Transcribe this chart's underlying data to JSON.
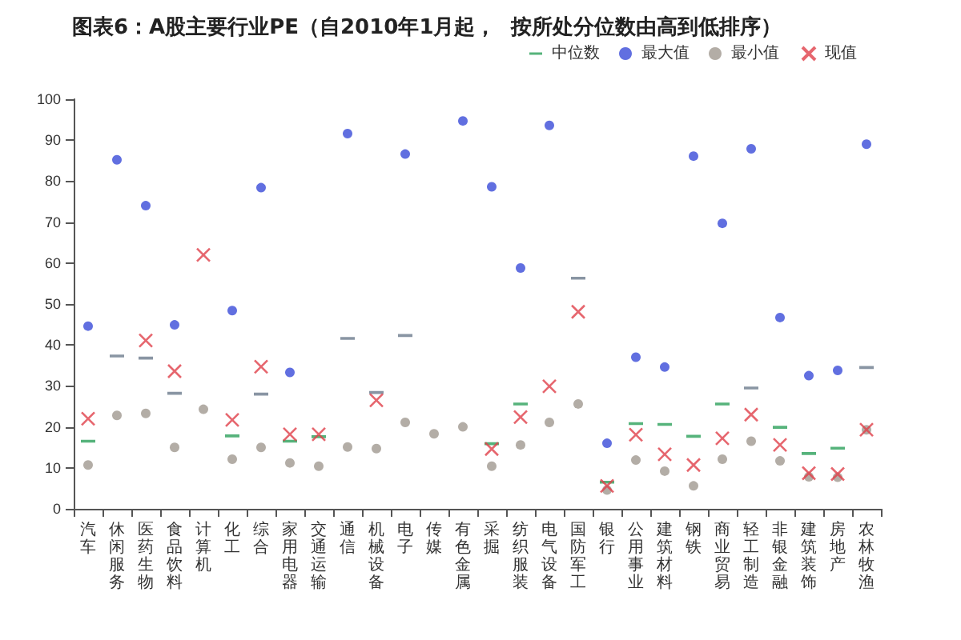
{
  "chart_data": {
    "type": "scatter",
    "title": "图表6：A股主要行业PE（自2010年1月起，  按所处分位数由高到低排序）",
    "categories": [
      "汽车",
      "休闲服务",
      "医药生物",
      "食品饮料",
      "计算机",
      "化工",
      "综合",
      "家用电器",
      "交通运输",
      "通信",
      "机械设备",
      "电子",
      "传媒",
      "有色金属",
      "采掘",
      "纺织服装",
      "电气设备",
      "国防军工",
      "银行",
      "公用事业",
      "建筑材料",
      "钢铁",
      "商业贸易",
      "轻工制造",
      "非银金融",
      "建筑装饰",
      "房地产",
      "农林牧渔"
    ],
    "series": [
      {
        "name": "中位数",
        "color": "#2ca05a",
        "colors": [
          "#2ca05a",
          "#6b7b8c",
          "#6b7b8c",
          "#6b7b8c",
          "#6b7b8c",
          "#2ca05a",
          "#6b7b8c",
          "#2ca05a",
          "#2ca05a",
          "#6b7b8c",
          "#6b7b8c",
          "#6b7b8c",
          "#6b7b8c",
          "#6b7b8c",
          "#2ca05a",
          "#2ca05a",
          "#6b7b8c",
          "#6b7b8c",
          "#2ca05a",
          "#2ca05a",
          "#2ca05a",
          "#2ca05a",
          "#2ca05a",
          "#6b7b8c",
          "#2ca05a",
          "#2ca05a",
          "#2ca05a",
          "#6b7b8c"
        ],
        "values": [
          16.5,
          37.3,
          36.8,
          28.2,
          null,
          17.8,
          28,
          16.5,
          17.6,
          41.6,
          28.4,
          42.3,
          null,
          null,
          15.9,
          25.6,
          null,
          56.3,
          6.5,
          20.8,
          20.6,
          17.7,
          25.6,
          29.5,
          19.9,
          13.5,
          14.8,
          34.5
        ]
      },
      {
        "name": "最大值",
        "color": "#3a4bd8",
        "marker": "circle",
        "values": [
          44.6,
          85.2,
          74,
          44.9,
          null,
          48.4,
          78.4,
          33.3,
          null,
          91.6,
          null,
          86.6,
          null,
          94.7,
          78.6,
          58.8,
          93.6,
          null,
          16,
          37,
          34.6,
          86.1,
          69.7,
          87.9,
          46.7,
          32.5,
          33.8,
          89
        ]
      },
      {
        "name": "最小值",
        "color": "#a09890",
        "marker": "circle",
        "values": [
          10.7,
          22.8,
          23.3,
          15,
          24.3,
          12.1,
          15,
          11.2,
          10.4,
          15.1,
          14.7,
          21.1,
          18.3,
          20,
          10.4,
          15.6,
          21.1,
          25.6,
          4.6,
          11.9,
          9.2,
          5.6,
          12.1,
          16.5,
          11.7,
          7.8,
          7.7,
          19.3
        ]
      },
      {
        "name": "现值",
        "color": "#e0404a",
        "marker": "cross",
        "values": [
          22,
          null,
          41.1,
          33.6,
          62,
          21.7,
          34.7,
          18.2,
          18.2,
          null,
          26.5,
          null,
          null,
          null,
          14.6,
          22.4,
          29.9,
          48.1,
          5.6,
          18.1,
          13.3,
          10.7,
          17.2,
          23,
          15.6,
          8.7,
          8.5,
          19.3
        ]
      }
    ],
    "ylim": [
      0,
      100
    ],
    "yticks": [
      0,
      10,
      20,
      30,
      40,
      50,
      60,
      70,
      80,
      90,
      100
    ],
    "grid": false,
    "legend": "top right"
  }
}
